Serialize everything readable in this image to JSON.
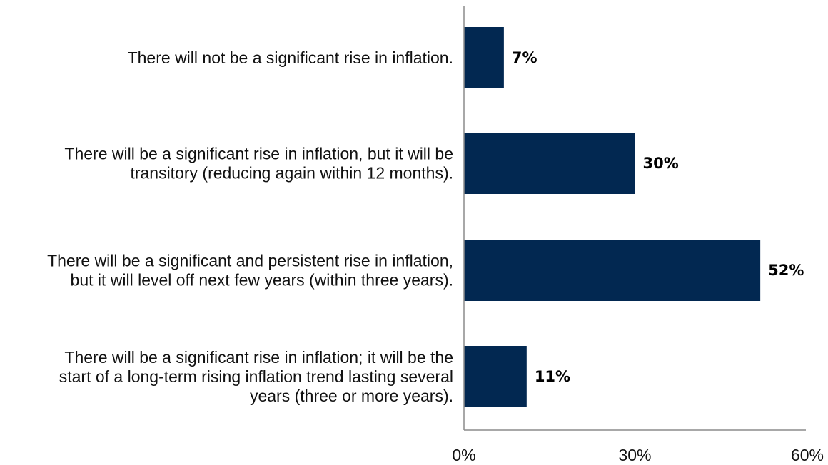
{
  "chart_data": {
    "type": "bar",
    "orientation": "horizontal",
    "categories": [
      [
        "There will not be a significant rise in inflation."
      ],
      [
        "There will be a significant rise in inflation, but it will be",
        "transitory (reducing again within 12 months)."
      ],
      [
        "There will be a significant and persistent rise in inflation,",
        "but it will level off next few years (within three years)."
      ],
      [
        "There will be a significant rise in inflation; it will be the",
        "start of a long-term rising inflation trend lasting several",
        "years (three or more years)."
      ]
    ],
    "values": [
      7,
      30,
      52,
      11
    ],
    "value_labels": [
      "7%",
      "30%",
      "52%",
      "11%"
    ],
    "x_ticks": [
      "0%",
      "30%",
      "60%"
    ],
    "xlim": [
      0,
      60
    ],
    "grid": false,
    "bar_color": "#022851",
    "title": "",
    "xlabel": "",
    "ylabel": ""
  }
}
